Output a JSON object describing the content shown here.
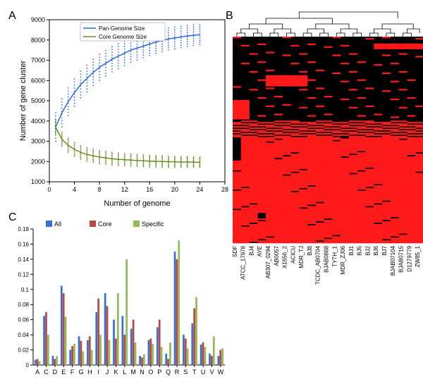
{
  "panelA": {
    "label": "A",
    "type": "line",
    "title": null,
    "xlabel": "Number of genome",
    "ylabel": "Number of gene cluster",
    "label_fontsize": 11,
    "xlim": [
      0,
      28
    ],
    "ylim": [
      1000,
      9000
    ],
    "xtick_step": 4,
    "ytick_step": 1000,
    "background_color": "#ffffff",
    "grid": false,
    "legend": {
      "position": "top-center",
      "items": [
        {
          "label": "Pan-Genome Size",
          "color": "#2e6ae6"
        },
        {
          "label": "Core Genome Size",
          "color": "#6b8e23"
        }
      ]
    },
    "pan_series": {
      "color": "#2e6ae6",
      "line_width": 1.5,
      "x": [
        1,
        2,
        3,
        4,
        5,
        6,
        7,
        8,
        9,
        10,
        11,
        12,
        13,
        14,
        15,
        16,
        17,
        18,
        19,
        20,
        21,
        22,
        23,
        24
      ],
      "y": [
        3700,
        4400,
        4950,
        5400,
        5800,
        6100,
        6400,
        6650,
        6850,
        7050,
        7200,
        7350,
        7500,
        7600,
        7700,
        7800,
        7900,
        7980,
        8050,
        8100,
        8150,
        8200,
        8230,
        8260
      ],
      "scatter_spread": 1400
    },
    "core_series": {
      "color": "#6b8e23",
      "line_width": 1.5,
      "x": [
        1,
        2,
        3,
        4,
        5,
        6,
        7,
        8,
        9,
        10,
        11,
        12,
        13,
        14,
        15,
        16,
        17,
        18,
        19,
        20,
        21,
        22,
        23,
        24
      ],
      "y": [
        3700,
        3100,
        2800,
        2600,
        2450,
        2350,
        2280,
        2220,
        2180,
        2140,
        2110,
        2090,
        2070,
        2050,
        2035,
        2020,
        2010,
        2000,
        1990,
        1985,
        1980,
        1975,
        1970,
        1965
      ],
      "scatter_spread": 700
    }
  },
  "panelB": {
    "label": "B",
    "type": "heatmap",
    "background_color": "#000000",
    "present_color": "#ff1a1a",
    "absent_color": "#000000",
    "dendrogram_color": "#000000",
    "columns": [
      "SDF",
      "ATCC_17978",
      "BJ4",
      "AYE",
      "AB307_0294",
      "AB0057",
      "X1656_2",
      "ACICU",
      "MDR_TJ",
      "BJ8",
      "TCDC_AB0704",
      "BJAB0868",
      "TYTH_1",
      "MDR_ZJ06",
      "BJ1",
      "BJ5",
      "BJ2",
      "BJ6",
      "BJ7",
      "BJAB07104",
      "BJAB0715",
      "D1279779",
      "ZW85_1"
    ],
    "label_fontsize": 8
  },
  "panelC": {
    "label": "C",
    "type": "bar",
    "series": [
      {
        "name": "All",
        "color": "#3a6fd8"
      },
      {
        "name": "Core",
        "color": "#b94a3d"
      },
      {
        "name": "Specific",
        "color": "#8fbc5a"
      }
    ],
    "categories": [
      "A",
      "C",
      "D",
      "E",
      "F",
      "G",
      "H",
      "I",
      "J",
      "K",
      "L",
      "M",
      "N",
      "O",
      "P",
      "Q",
      "R",
      "S",
      "T",
      "U",
      "V",
      "W"
    ],
    "values": {
      "All": [
        0.007,
        0.065,
        0.012,
        0.105,
        0.02,
        0.038,
        0.033,
        0.07,
        0.095,
        0.06,
        0.065,
        0.048,
        0.012,
        0.033,
        0.05,
        0.015,
        0.15,
        0.04,
        0.055,
        0.027,
        0.015,
        0.012
      ],
      "Core": [
        0.008,
        0.07,
        0.008,
        0.095,
        0.025,
        0.032,
        0.038,
        0.088,
        0.078,
        0.035,
        0.04,
        0.06,
        0.01,
        0.035,
        0.06,
        0.008,
        0.14,
        0.035,
        0.075,
        0.03,
        0.012,
        0.02
      ],
      "Specific": [
        0.005,
        0.04,
        0.012,
        0.064,
        0.028,
        0.018,
        0.02,
        0.04,
        0.033,
        0.095,
        0.14,
        0.03,
        0.014,
        0.028,
        0.024,
        0.03,
        0.165,
        0.022,
        0.09,
        0.024,
        0.038,
        0.022
      ]
    },
    "ylim": [
      0,
      0.18
    ],
    "ytick_step": 0.02,
    "label_fontsize": 9,
    "background_color": "#ffffff",
    "bar_group_width": 0.7
  }
}
